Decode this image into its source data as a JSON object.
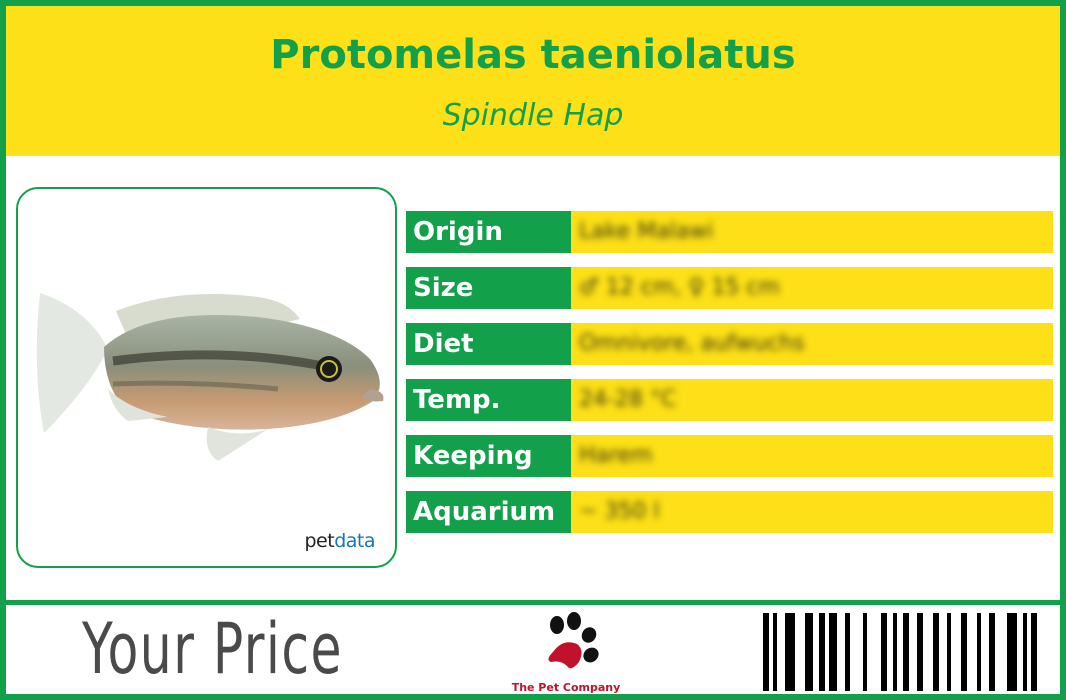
{
  "header": {
    "title": "Protomelas taeniolatus",
    "subtitle": "Spindle Hap"
  },
  "photo": {
    "watermark_part1": "pet",
    "watermark_part2": "data",
    "alt": "fish photo"
  },
  "facts": [
    {
      "label": "Origin",
      "value": "Lake Malawi"
    },
    {
      "label": "Size",
      "value": "♂ 12 cm, ♀ 15 cm"
    },
    {
      "label": "Diet",
      "value": "Omnivore, aufwuchs"
    },
    {
      "label": "Temp.",
      "value": "24-28 °C"
    },
    {
      "label": "Keeping",
      "value": "Harem"
    },
    {
      "label": "Aquarium",
      "value": "~ 350 l"
    }
  ],
  "footer": {
    "price_label": "Your Price",
    "company": "The Pet Company",
    "barcode_icon": "barcode-icon"
  },
  "colors": {
    "green": "#12a04a",
    "yellow": "#fde017",
    "paw_red": "#c0122a"
  }
}
